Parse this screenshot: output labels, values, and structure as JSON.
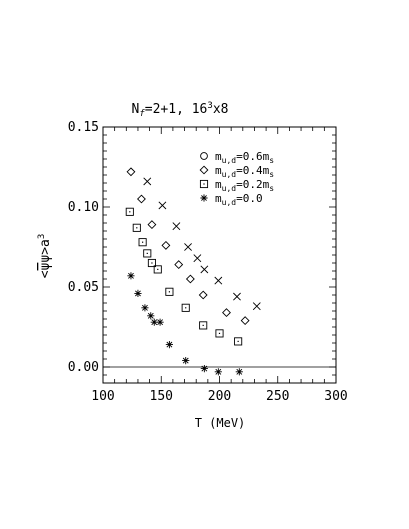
{
  "chart_data": {
    "type": "scatter",
    "title": {
      "parts": [
        "N",
        "f",
        "=2+1, 16",
        "3",
        "x8"
      ]
    },
    "xlabel": "T (MeV)",
    "ylabel": {
      "parts": [
        "<",
        "ψ",
        "ψ",
        ">a",
        "3"
      ]
    },
    "xlim": [
      100,
      300
    ],
    "ylim": [
      -0.01,
      0.15
    ],
    "xticks": [
      100,
      150,
      200,
      250,
      300
    ],
    "yticks": [
      0.0,
      0.05,
      0.1,
      0.15
    ],
    "xtick_labels": [
      "100",
      "150",
      "200",
      "250",
      "300"
    ],
    "ytick_labels": [
      "0.00",
      "0.05",
      "0.10",
      "0.15"
    ],
    "reference_line_y": 0.0,
    "legend_position": "top-right",
    "series": [
      {
        "name": "m_{u,d}=0.6m_s",
        "label_parts": [
          "m",
          "u,d",
          "=0.6m",
          "s"
        ],
        "marker": "x",
        "x": [
          138,
          151,
          163,
          173,
          181,
          187,
          199,
          215,
          232
        ],
        "y": [
          0.116,
          0.101,
          0.088,
          0.075,
          0.068,
          0.061,
          0.054,
          0.044,
          0.038
        ]
      },
      {
        "name": "m_{u,d}=0.4m_s",
        "label_parts": [
          "m",
          "u,d",
          "=0.4m",
          "s"
        ],
        "marker": "diamond",
        "x": [
          124,
          133,
          142,
          154,
          165,
          175,
          186,
          206,
          222
        ],
        "y": [
          0.122,
          0.105,
          0.089,
          0.076,
          0.064,
          0.055,
          0.045,
          0.034,
          0.029
        ]
      },
      {
        "name": "m_{u,d}=0.2m_s",
        "label_parts": [
          "m",
          "u,d",
          "=0.2m",
          "s"
        ],
        "marker": "square",
        "x": [
          123,
          129,
          134,
          138,
          142,
          147,
          157,
          171,
          186,
          200,
          216
        ],
        "y": [
          0.097,
          0.087,
          0.078,
          0.071,
          0.065,
          0.061,
          0.047,
          0.037,
          0.026,
          0.021,
          0.016
        ]
      },
      {
        "name": "m_{u,d}=0.0",
        "label_parts": [
          "m",
          "u,d",
          "=0.0",
          ""
        ],
        "marker": "asterisk",
        "x": [
          124,
          130,
          136,
          141,
          144,
          149,
          157,
          171,
          187,
          199,
          217
        ],
        "y": [
          0.057,
          0.046,
          0.037,
          0.032,
          0.028,
          0.028,
          0.014,
          0.004,
          -0.001,
          -0.003,
          -0.003
        ]
      }
    ]
  }
}
